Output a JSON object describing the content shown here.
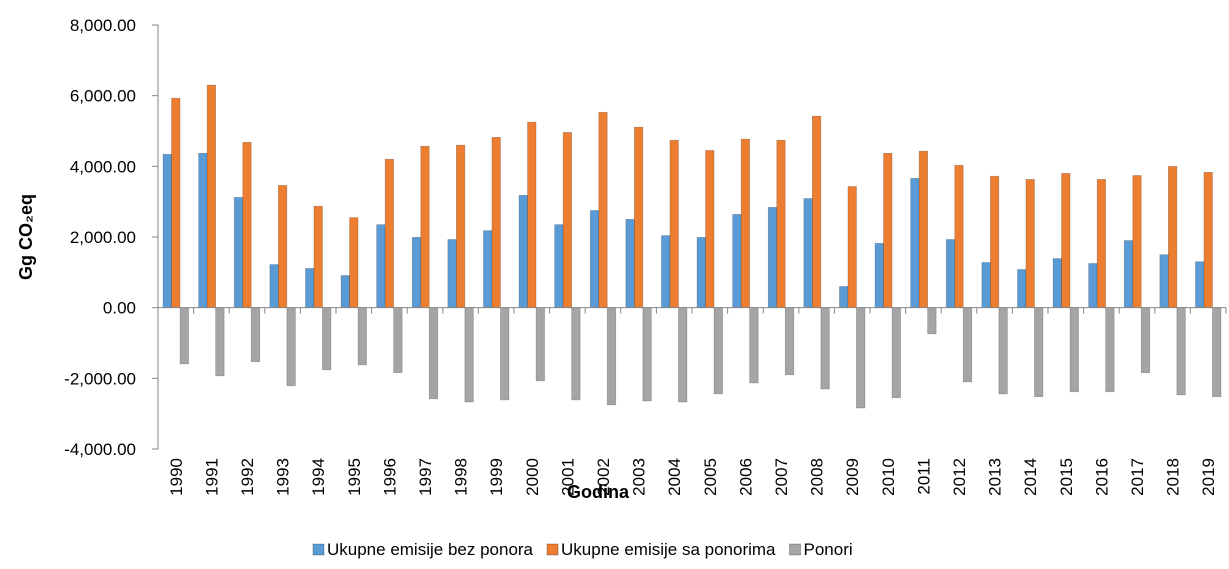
{
  "chart_data": {
    "type": "bar",
    "y_label": "Gg CO₂eq",
    "x_label": "Godina",
    "categories": [
      "1990",
      "1991",
      "1992",
      "1993",
      "1994",
      "1995",
      "1996",
      "1997",
      "1998",
      "1999",
      "2000",
      "2001",
      "2002",
      "2003",
      "2004",
      "2005",
      "2006",
      "2007",
      "2008",
      "2009",
      "2010",
      "2011",
      "2012",
      "2013",
      "2014",
      "2015",
      "2016",
      "2017",
      "2018",
      "2019"
    ],
    "series": [
      {
        "name": "Ukupne emisije bez ponora",
        "color": "#5b9bd5",
        "values": [
          4340,
          4370,
          3120,
          1220,
          1110,
          910,
          2350,
          1990,
          1930,
          2180,
          3180,
          2350,
          2750,
          2500,
          2040,
          1990,
          2640,
          2840,
          3090,
          600,
          1820,
          3660,
          1930,
          1280,
          1080,
          1390,
          1250,
          1900,
          1500,
          1300
        ]
      },
      {
        "name": "Ukupne emisije sa ponorima",
        "color": "#ed7d31",
        "values": [
          5930,
          6300,
          4680,
          3460,
          2870,
          2550,
          4200,
          4570,
          4600,
          4820,
          5250,
          4960,
          5530,
          5110,
          4740,
          4450,
          4770,
          4740,
          5420,
          3430,
          4370,
          4430,
          4030,
          3720,
          3630,
          3800,
          3630,
          3740,
          4000,
          3830
        ]
      },
      {
        "name": "Ponori",
        "color": "#a5a5a5",
        "values": [
          -1590,
          -1930,
          -1530,
          -2210,
          -1760,
          -1620,
          -1840,
          -2580,
          -2670,
          -2610,
          -2070,
          -2610,
          -2750,
          -2640,
          -2670,
          -2440,
          -2130,
          -1900,
          -2300,
          -2840,
          -2550,
          -740,
          -2100,
          -2440,
          -2520,
          -2380,
          -2380,
          -1840,
          -2470,
          -2520
        ]
      }
    ],
    "ylim": [
      -4000,
      8000
    ],
    "yticks": [
      {
        "value": -4000,
        "label": "-4,000.00"
      },
      {
        "value": -2000,
        "label": "-2,000.00"
      },
      {
        "value": 0,
        "label": "0.00"
      },
      {
        "value": 2000,
        "label": "2,000.00"
      },
      {
        "value": 4000,
        "label": "4,000.00"
      },
      {
        "value": 6000,
        "label": "6,000.00"
      },
      {
        "value": 8000,
        "label": "8,000.00"
      }
    ],
    "legend": "bottom"
  }
}
